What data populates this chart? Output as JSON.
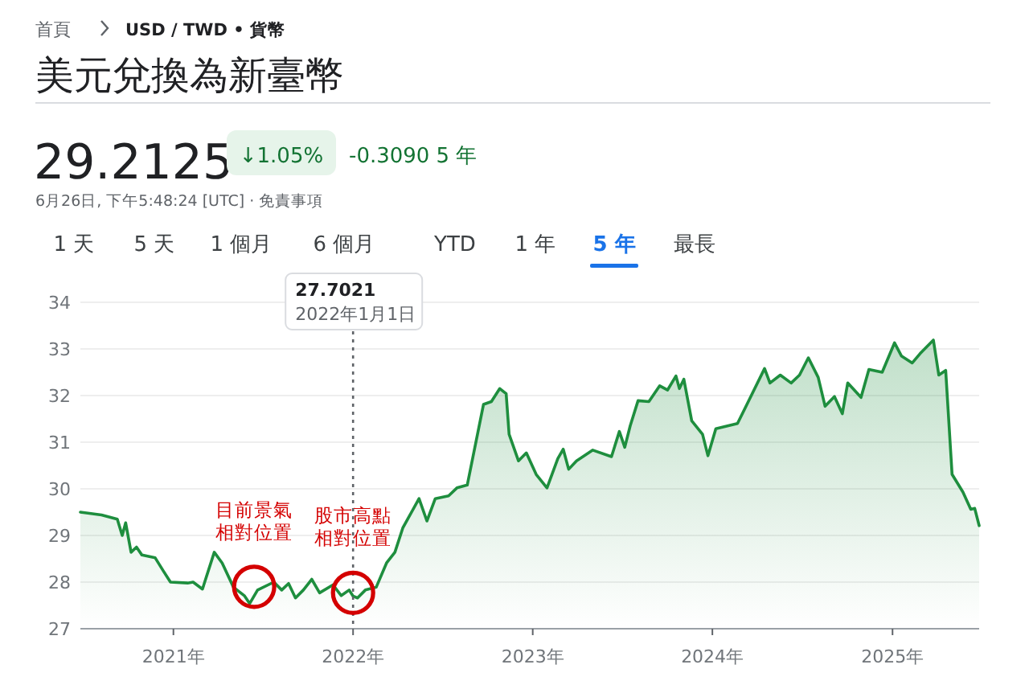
{
  "chart_data": {
    "type": "area",
    "title": "美元兌換為新臺幣",
    "annotations": [
      "首頁",
      "USD / TWD • 貨幣",
      "29.2125",
      "↓1.05%",
      "-0.3090 5 年",
      "6月26日, 下午5:48:24 [UTC] · 免責事項",
      "1 天",
      "5 天",
      "1 個月",
      "6 個月",
      "YTD",
      "1 年",
      "5 年",
      "最長",
      "27.7021",
      "2022年1月1日",
      {
        "text": "目前景氣相對位置",
        "x": "2021-06-14",
        "y": 27.9
      },
      {
        "text": "股市高點相對位置",
        "x": "2022-01-01",
        "y": 27.77
      }
    ],
    "x": [
      "2020-06-26",
      "2020-08-08",
      "2020-09-09",
      "2020-09-19",
      "2020-09-26",
      "2020-10-07",
      "2020-10-18",
      "2020-10-29",
      "2020-11-25",
      "2020-12-12",
      "2020-12-26",
      "2021-01-30",
      "2021-02-10",
      "2021-03-01",
      "2021-03-25",
      "2021-04-10",
      "2021-05-03",
      "2021-05-25",
      "2021-06-05",
      "2021-06-21",
      "2021-07-24",
      "2021-08-09",
      "2021-08-23",
      "2021-09-06",
      "2021-09-22",
      "2021-10-09",
      "2021-10-25",
      "2021-11-21",
      "2021-12-08",
      "2021-12-24",
      "2022-01-01",
      "2022-01-10",
      "2022-01-26",
      "2022-02-17",
      "2022-03-10",
      "2022-03-27",
      "2022-04-12",
      "2022-05-15",
      "2022-05-31",
      "2022-06-17",
      "2022-07-14",
      "2022-07-31",
      "2022-08-21",
      "2022-09-23",
      "2022-10-09",
      "2022-10-26",
      "2022-11-08",
      "2022-11-14",
      "2022-12-03",
      "2022-12-19",
      "2023-01-08",
      "2023-01-30",
      "2023-02-21",
      "2023-03-04",
      "2023-03-15",
      "2023-03-31",
      "2023-05-03",
      "2023-06-10",
      "2023-06-26",
      "2023-07-07",
      "2023-07-18",
      "2023-08-03",
      "2023-08-25",
      "2023-09-16",
      "2023-10-02",
      "2023-10-19",
      "2023-10-26",
      "2023-11-04",
      "2023-11-20",
      "2023-12-12",
      "2023-12-23",
      "2024-01-08",
      "2024-02-21",
      "2024-03-14",
      "2024-04-16",
      "2024-04-27",
      "2024-05-18",
      "2024-06-09",
      "2024-06-26",
      "2024-07-14",
      "2024-08-03",
      "2024-08-17",
      "2024-09-05",
      "2024-09-21",
      "2024-10-02",
      "2024-10-29",
      "2024-11-14",
      "2024-12-11",
      "2025-01-05",
      "2025-01-19",
      "2025-02-10",
      "2025-02-26",
      "2025-03-25",
      "2025-04-05",
      "2025-04-19",
      "2025-05-02",
      "2025-05-24",
      "2025-06-09",
      "2025-06-17",
      "2025-06-26"
    ],
    "series": [
      {
        "color": "#1e8e3e",
        "values": [
          29.5,
          29.44,
          29.35,
          29.0,
          29.27,
          28.64,
          28.75,
          28.58,
          28.52,
          28.23,
          28.0,
          27.98,
          28.0,
          27.85,
          28.64,
          28.41,
          27.89,
          27.71,
          27.54,
          27.83,
          28.0,
          27.83,
          27.97,
          27.66,
          27.83,
          28.06,
          27.77,
          27.94,
          27.71,
          27.83,
          27.7,
          27.66,
          27.83,
          27.89,
          28.41,
          28.64,
          29.16,
          29.79,
          29.31,
          29.79,
          29.85,
          30.02,
          30.08,
          31.81,
          31.87,
          32.15,
          32.04,
          31.17,
          30.6,
          30.77,
          30.31,
          30.02,
          30.65,
          30.85,
          30.42,
          30.6,
          30.83,
          30.69,
          31.23,
          30.89,
          31.35,
          31.89,
          31.87,
          32.21,
          32.12,
          32.42,
          32.15,
          32.35,
          31.46,
          31.17,
          30.71,
          31.29,
          31.4,
          31.87,
          32.58,
          32.27,
          32.44,
          32.27,
          32.44,
          32.81,
          32.39,
          31.77,
          31.98,
          31.61,
          32.27,
          31.96,
          32.56,
          32.5,
          33.13,
          32.85,
          32.7,
          32.9,
          33.19,
          32.44,
          32.54,
          30.31,
          29.93,
          29.56,
          29.58,
          29.21
        ]
      }
    ],
    "xlim": [
      "2020-06-26",
      "2025-06-26"
    ],
    "ylim": [
      27,
      34
    ],
    "yticks": [
      27,
      28,
      29,
      30,
      31,
      32,
      33,
      34
    ],
    "xticks": [
      {
        "value": "2021-01-01",
        "label": "2021年"
      },
      {
        "value": "2022-01-01",
        "label": "2022年"
      },
      {
        "value": "2023-01-01",
        "label": "2023年"
      },
      {
        "value": "2024-01-01",
        "label": "2024年"
      },
      {
        "value": "2025-01-01",
        "label": "2025年"
      }
    ],
    "ref_lines": [
      {
        "axis": "x",
        "value": "2022-01-01",
        "color": "#5f6368",
        "line_style": "dotted"
      }
    ],
    "grid": "y"
  }
}
